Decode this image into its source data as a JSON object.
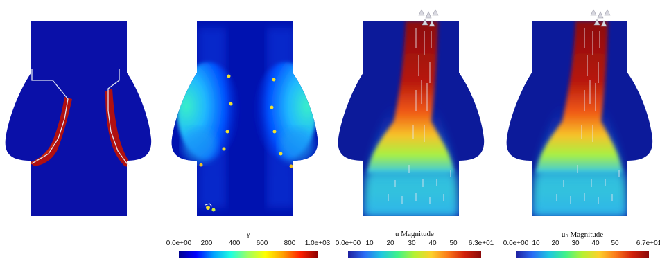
{
  "colorbars": [
    {
      "title": "γ",
      "ticks": [
        "0.0e+00",
        "200",
        "400",
        "600",
        "800",
        "1.0e+03"
      ]
    },
    {
      "title": "u Magnitude",
      "ticks": [
        "0.0e+00",
        "10",
        "20",
        "30",
        "40",
        "50",
        "6.3e+01"
      ]
    },
    {
      "title": "u_N Magnitude",
      "title_display": "uₙ Magnitude",
      "ticks": [
        "0.0e+00",
        "10",
        "20",
        "30",
        "40",
        "50",
        "6.7e+01"
      ]
    }
  ]
}
